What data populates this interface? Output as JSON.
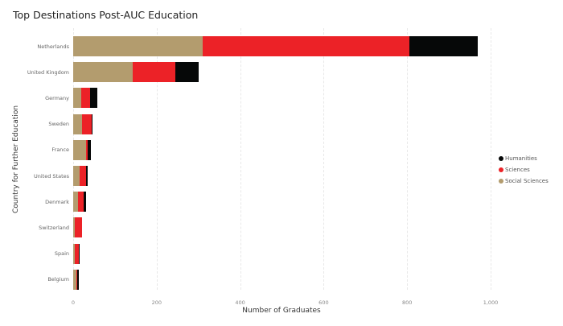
{
  "chart_data": {
    "type": "bar",
    "orientation": "horizontal",
    "stacked": true,
    "title": "Top Destinations Post-AUC Education",
    "xlabel": "Number of Graduates",
    "ylabel": "Country for Further Education",
    "xlim": [
      0,
      1050
    ],
    "xticks": [
      "0",
      "200",
      "400",
      "600",
      "800",
      "1,000"
    ],
    "xtick_values": [
      0,
      200,
      400,
      600,
      800,
      1000
    ],
    "grid": true,
    "legend_position": "right",
    "categories": [
      "Netherlands",
      "United Kingdom",
      "Germany",
      "Sweden",
      "France",
      "United States",
      "Denmark",
      "Switzerland",
      "Spain",
      "Belgium"
    ],
    "series": [
      {
        "name": "Social Sciences",
        "color": "#b39c6e",
        "values": [
          310,
          142,
          20,
          22,
          30,
          16,
          12,
          3,
          3,
          7
        ]
      },
      {
        "name": "Sciences",
        "color": "#ec2227",
        "values": [
          495,
          103,
          20,
          22,
          5,
          14,
          13,
          19,
          10,
          2
        ]
      },
      {
        "name": "Humanities",
        "color": "#060808",
        "values": [
          165,
          55,
          17,
          1,
          7,
          5,
          5,
          0,
          3,
          5
        ]
      }
    ],
    "legend": [
      "Humanities",
      "Sciences",
      "Social Sciences"
    ]
  }
}
